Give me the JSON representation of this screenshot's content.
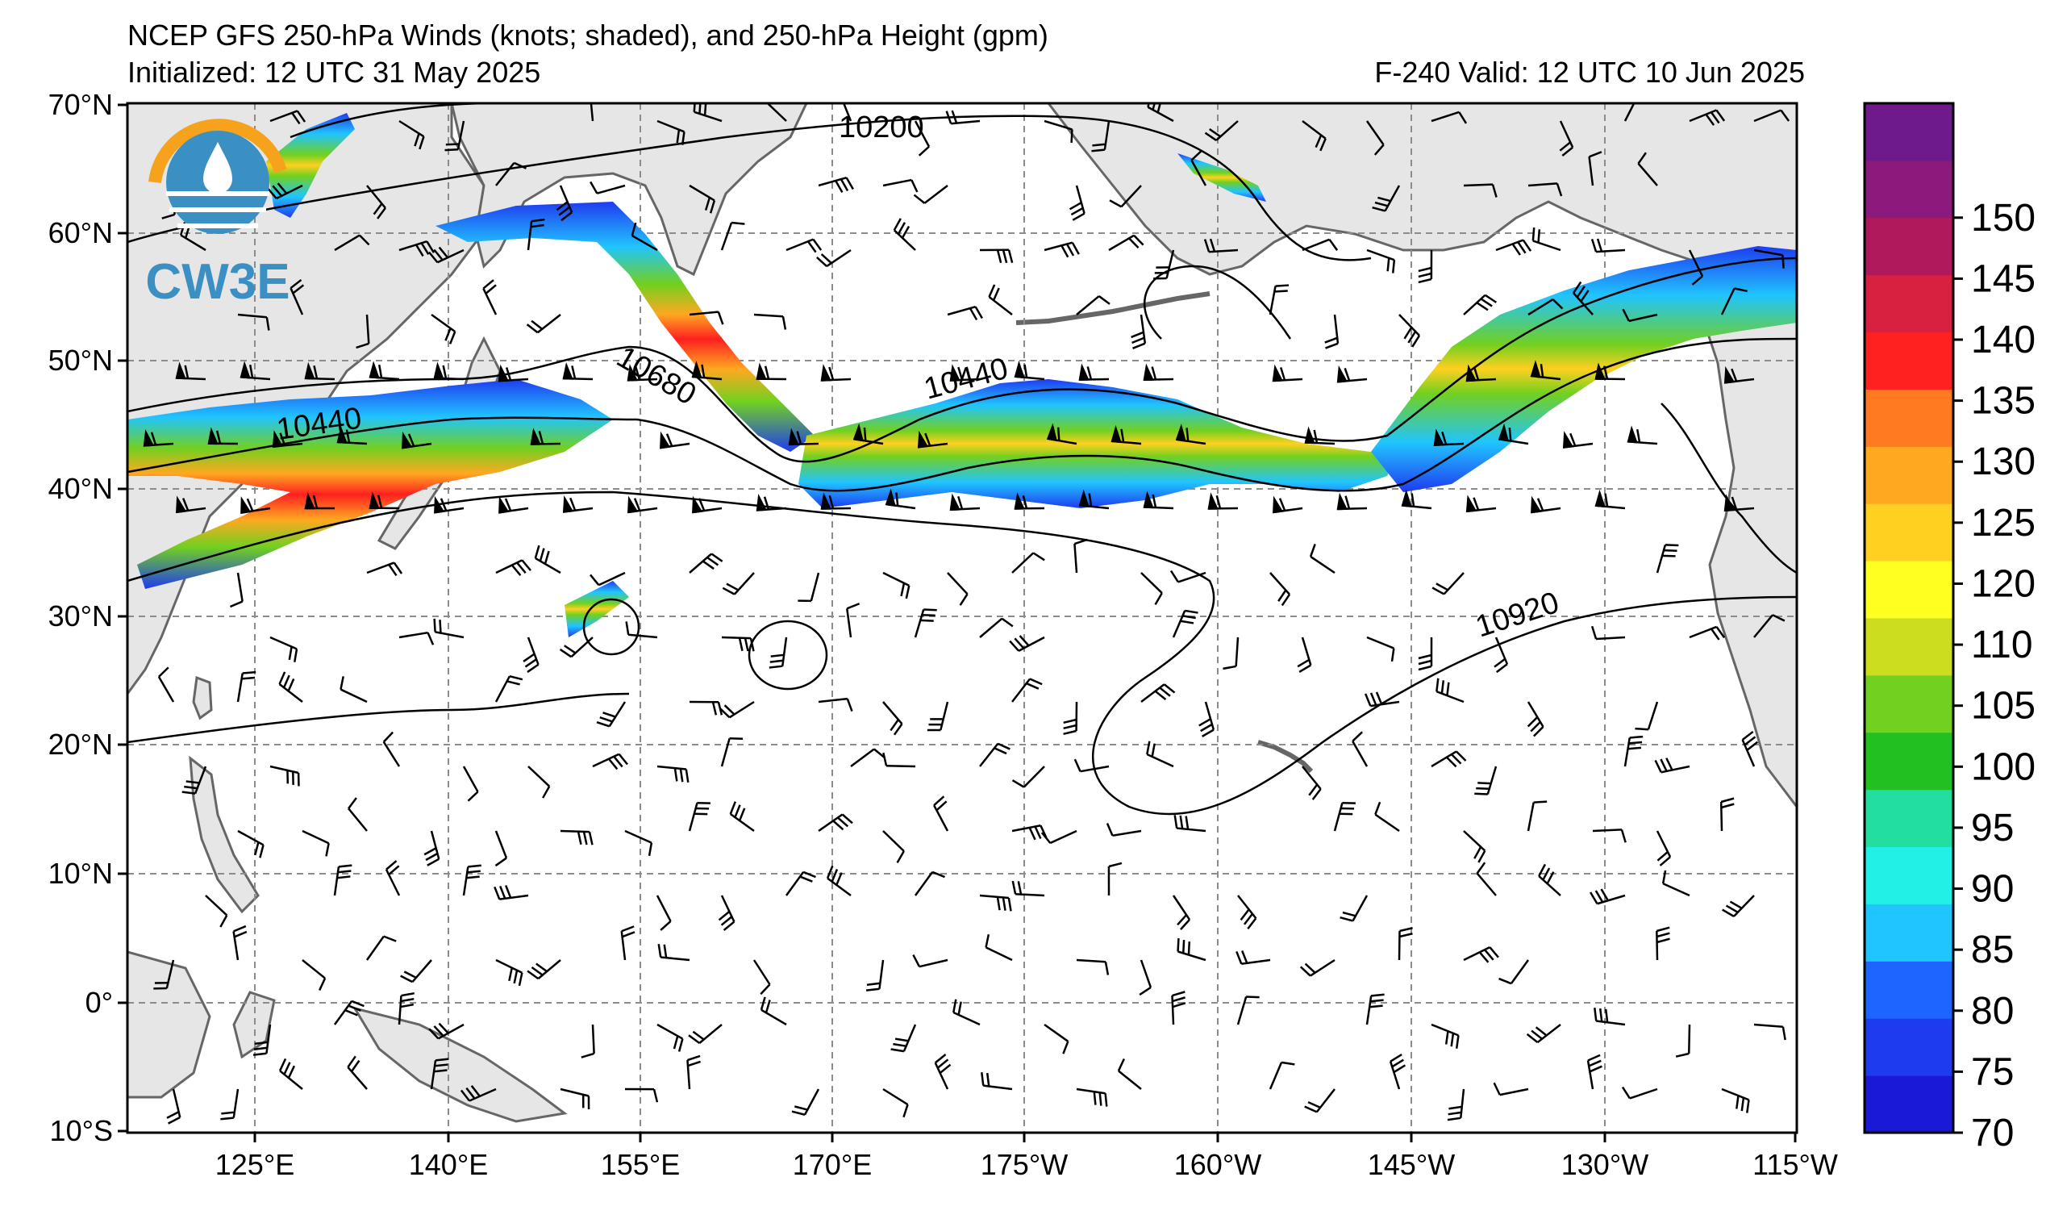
{
  "header": {
    "title": "NCEP GFS 250-hPa Winds (knots; shaded), and 250-hPa Height (gpm)",
    "initialized": "Initialized: 12 UTC 31 May 2025",
    "valid": "F-240  Valid: 12 UTC 10 Jun 2025"
  },
  "logo": {
    "text": "CW3E"
  },
  "map": {
    "lat_labels": [
      "70°N",
      "60°N",
      "50°N",
      "40°N",
      "30°N",
      "20°N",
      "10°N",
      "0°",
      "10°S"
    ],
    "lon_labels": [
      "125°E",
      "140°E",
      "155°E",
      "170°E",
      "175°W",
      "160°W",
      "145°W",
      "130°W",
      "115°W"
    ],
    "contour_labels": [
      "10200",
      "10440",
      "10680",
      "10440",
      "10920"
    ],
    "land_color": "#e6e6e6",
    "coast_color": "#666666",
    "grid_color": "#8c8c8c"
  },
  "colorbar": {
    "labels": [
      "70",
      "75",
      "80",
      "85",
      "90",
      "95",
      "100",
      "105",
      "110",
      "120",
      "125",
      "130",
      "135",
      "140",
      "145",
      "150"
    ],
    "colors": [
      "#1a1ad6",
      "#1f3bf0",
      "#1e64ff",
      "#20c4ff",
      "#22f0e6",
      "#22dea0",
      "#22c020",
      "#72d020",
      "#ccdd20",
      "#ffff20",
      "#ffd020",
      "#ffa820",
      "#ff7a20",
      "#ff2020",
      "#d82040",
      "#b01a5c",
      "#8c1a7c",
      "#6e1a8c"
    ]
  }
}
